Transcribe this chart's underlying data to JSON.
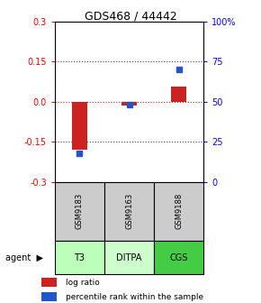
{
  "title": "GDS468 / 44442",
  "samples": [
    "GSM9183",
    "GSM9163",
    "GSM9188"
  ],
  "agents": [
    "T3",
    "DITPA",
    "CGS"
  ],
  "log_ratio": [
    -0.18,
    -0.015,
    0.055
  ],
  "percentile": [
    18,
    48,
    70
  ],
  "ylim_left": [
    -0.3,
    0.3
  ],
  "ylim_right": [
    0,
    100
  ],
  "left_ticks": [
    -0.3,
    -0.15,
    0.0,
    0.15,
    0.3
  ],
  "right_ticks": [
    0,
    25,
    50,
    75,
    100
  ],
  "right_tick_labels": [
    "0",
    "25",
    "50",
    "75",
    "100%"
  ],
  "bar_color": "#cc2222",
  "square_color": "#2255cc",
  "agent_colors": [
    "#bbffbb",
    "#ccffcc",
    "#44cc44"
  ],
  "sample_bg": "#cccccc",
  "zero_line_color": "#cc2222",
  "dotted_line_color": "#444444",
  "legend_labels": [
    "log ratio",
    "percentile rank within the sample"
  ],
  "bar_width": 0.3
}
